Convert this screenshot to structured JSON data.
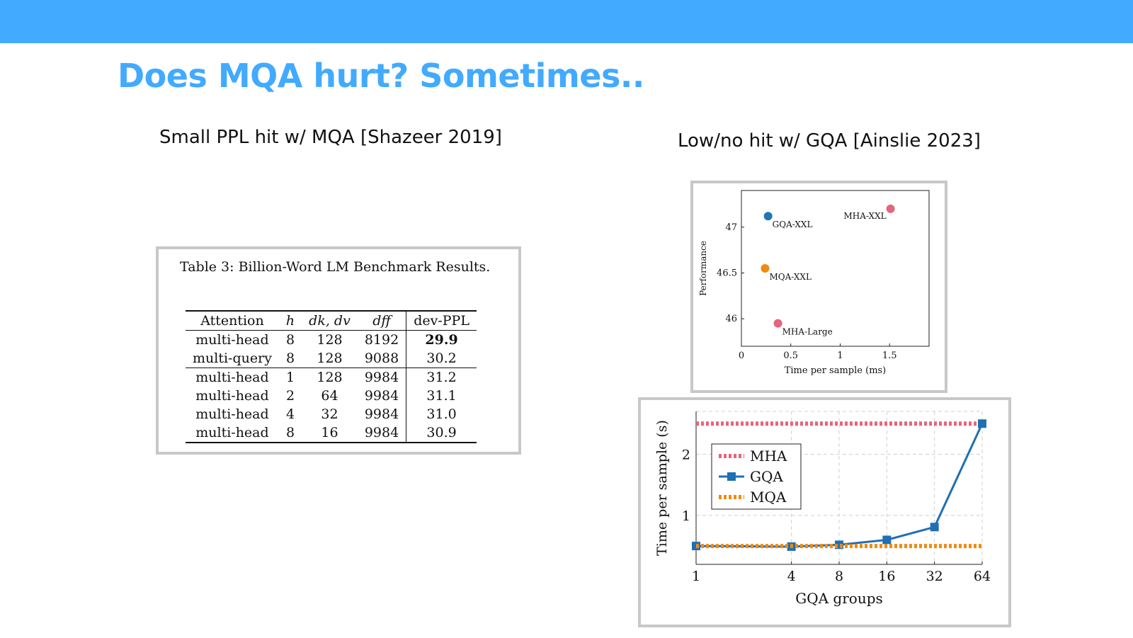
{
  "slide": {
    "title": "Does MQA hurt? Sometimes..",
    "left_subtitle": "Small PPL hit w/ MQA [Shazeer 2019]",
    "right_subtitle": "Low/no hit w/ GQA [Ainslie 2023]",
    "accent_color": "#42aaff"
  },
  "table": {
    "caption": "Table 3: Billion-Word LM Benchmark Results.",
    "headers": [
      "Attention",
      "h",
      "dk, dv",
      "dff",
      "dev-PPL"
    ],
    "rows": [
      [
        "multi-head",
        "8",
        "128",
        "8192",
        "29.9"
      ],
      [
        "multi-query",
        "8",
        "128",
        "9088",
        "30.2"
      ],
      [
        "multi-head",
        "1",
        "128",
        "9984",
        "31.2"
      ],
      [
        "multi-head",
        "2",
        "64",
        "9984",
        "31.1"
      ],
      [
        "multi-head",
        "4",
        "32",
        "9984",
        "31.0"
      ],
      [
        "multi-head",
        "8",
        "16",
        "9984",
        "30.9"
      ]
    ]
  },
  "chart_data": [
    {
      "type": "scatter",
      "xlabel": "Time per sample (ms)",
      "ylabel": "Performance",
      "xlim": [
        0,
        1.9
      ],
      "ylim": [
        45.7,
        47.4
      ],
      "xticks": [
        "0",
        "0.5",
        "1",
        "1.5"
      ],
      "xtick_values": [
        0,
        0.5,
        1,
        1.5
      ],
      "yticks": [
        "46",
        "46.5",
        "47"
      ],
      "ytick_values": [
        46,
        46.5,
        47
      ],
      "points": [
        {
          "label": "GQA-XXL",
          "x": 0.27,
          "y": 47.12,
          "color": "#1f77b4"
        },
        {
          "label": "MHA-XXL",
          "x": 1.51,
          "y": 47.2,
          "color": "#e3667a"
        },
        {
          "label": "MQA-XXL",
          "x": 0.24,
          "y": 46.55,
          "color": "#f08a12"
        },
        {
          "label": "MHA-Large",
          "x": 0.37,
          "y": 45.95,
          "color": "#e3667a"
        }
      ]
    },
    {
      "type": "line",
      "xlabel": "GQA groups",
      "ylabel": "Time per sample (s)",
      "x": [
        1,
        4,
        8,
        16,
        32,
        64
      ],
      "xticks": [
        "1",
        "4",
        "8",
        "16",
        "32",
        "64"
      ],
      "xscale": "log2",
      "ylim": [
        0.2,
        2.7
      ],
      "yticks": [
        "1",
        "2"
      ],
      "ytick_values": [
        1,
        2
      ],
      "grid": true,
      "legend_position": "upper-left",
      "series": [
        {
          "name": "MHA",
          "values": [
            2.5,
            2.5,
            2.5,
            2.5,
            2.5,
            2.5
          ],
          "color": "#e3667a",
          "style": "dotted"
        },
        {
          "name": "GQA",
          "values": [
            0.5,
            0.49,
            0.52,
            0.6,
            0.81,
            2.5
          ],
          "color": "#1f6fb4",
          "style": "solid"
        },
        {
          "name": "MQA",
          "values": [
            0.5,
            0.5,
            0.5,
            0.5,
            0.5,
            0.5
          ],
          "color": "#f08a12",
          "style": "dotted"
        }
      ]
    }
  ]
}
